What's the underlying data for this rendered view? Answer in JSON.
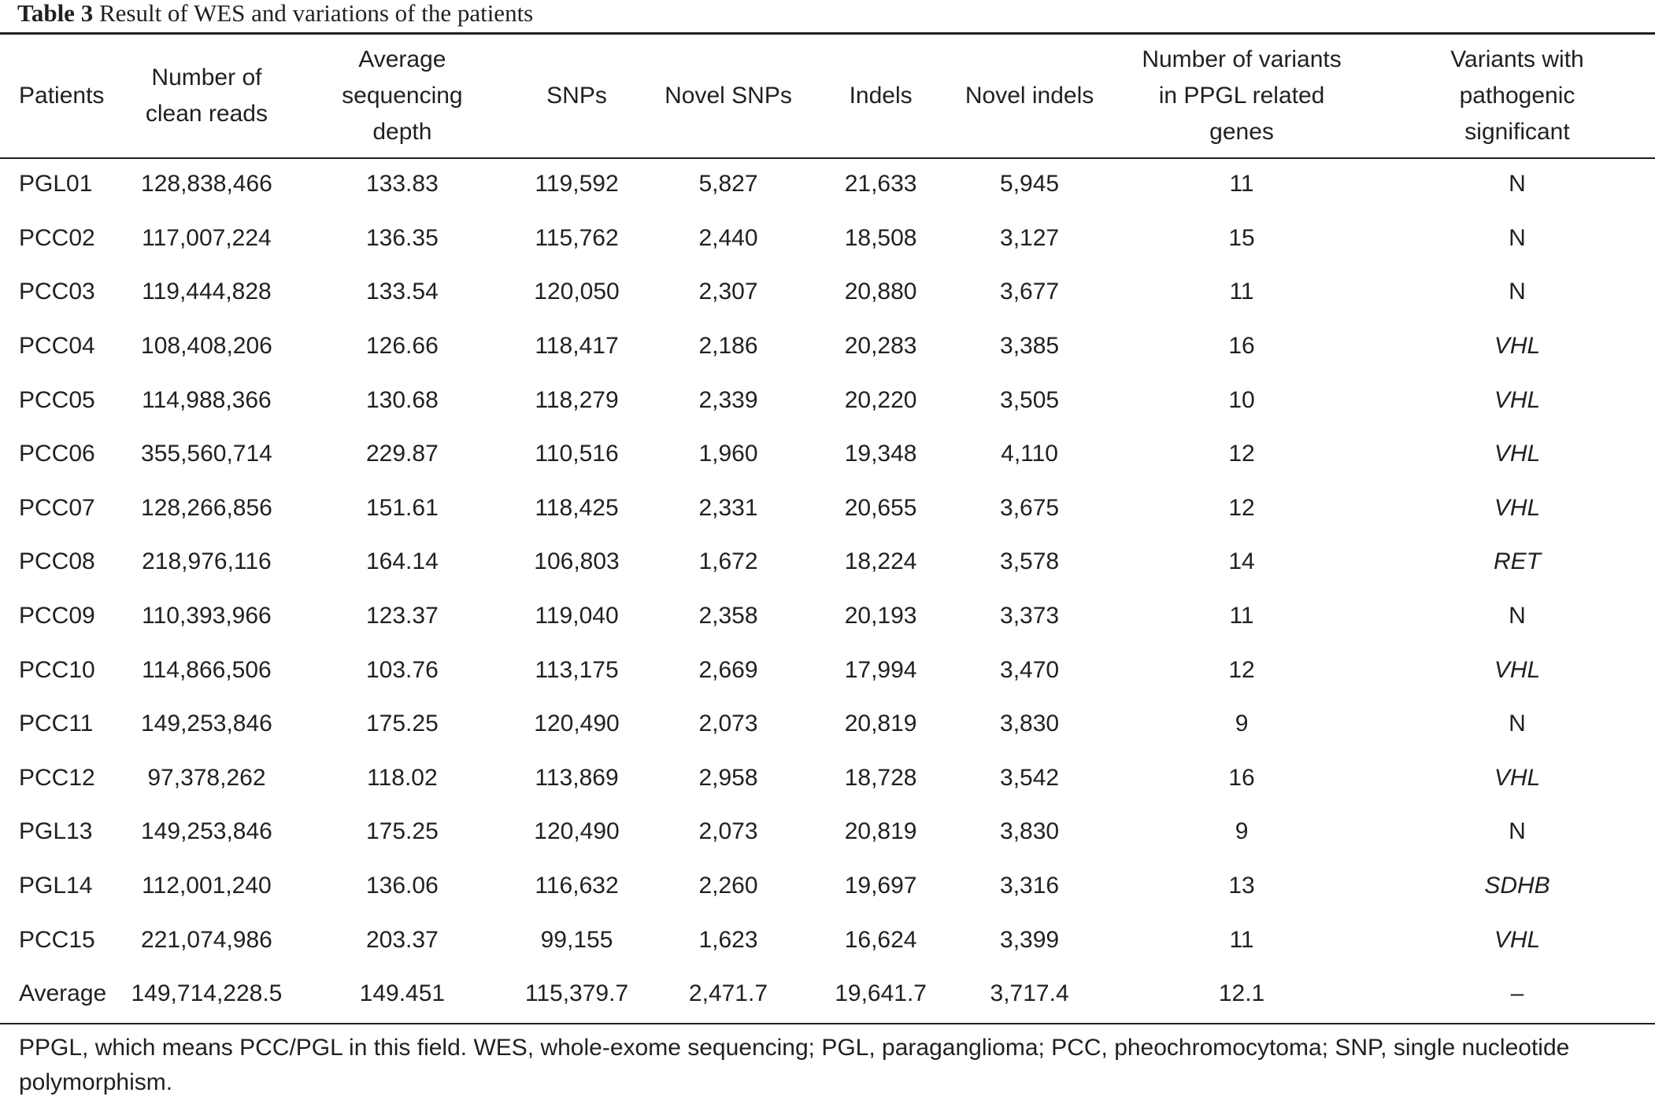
{
  "caption": {
    "label": "Table 3",
    "title": "Result of WES and variations of the patients"
  },
  "table": {
    "headers": [
      "Patients",
      "Number of\nclean reads",
      "Average\nsequencing\ndepth",
      "SNPs",
      "Novel SNPs",
      "Indels",
      "Novel indels",
      "Number of variants\nin PPGL related\ngenes",
      "Variants with\npathogenic\nsignificant"
    ],
    "rows": [
      [
        "PGL01",
        "128,838,466",
        "133.83",
        "119,592",
        "5,827",
        "21,633",
        "5,945",
        "11",
        "N"
      ],
      [
        "PCC02",
        "117,007,224",
        "136.35",
        "115,762",
        "2,440",
        "18,508",
        "3,127",
        "15",
        "N"
      ],
      [
        "PCC03",
        "119,444,828",
        "133.54",
        "120,050",
        "2,307",
        "20,880",
        "3,677",
        "11",
        "N"
      ],
      [
        "PCC04",
        "108,408,206",
        "126.66",
        "118,417",
        "2,186",
        "20,283",
        "3,385",
        "16",
        "VHL"
      ],
      [
        "PCC05",
        "114,988,366",
        "130.68",
        "118,279",
        "2,339",
        "20,220",
        "3,505",
        "10",
        "VHL"
      ],
      [
        "PCC06",
        "355,560,714",
        "229.87",
        "110,516",
        "1,960",
        "19,348",
        "4,110",
        "12",
        "VHL"
      ],
      [
        "PCC07",
        "128,266,856",
        "151.61",
        "118,425",
        "2,331",
        "20,655",
        "3,675",
        "12",
        "VHL"
      ],
      [
        "PCC08",
        "218,976,116",
        "164.14",
        "106,803",
        "1,672",
        "18,224",
        "3,578",
        "14",
        "RET"
      ],
      [
        "PCC09",
        "110,393,966",
        "123.37",
        "119,040",
        "2,358",
        "20,193",
        "3,373",
        "11",
        "N"
      ],
      [
        "PCC10",
        "114,866,506",
        "103.76",
        "113,175",
        "2,669",
        "17,994",
        "3,470",
        "12",
        "VHL"
      ],
      [
        "PCC11",
        "149,253,846",
        "175.25",
        "120,490",
        "2,073",
        "20,819",
        "3,830",
        "9",
        "N"
      ],
      [
        "PCC12",
        "97,378,262",
        "118.02",
        "113,869",
        "2,958",
        "18,728",
        "3,542",
        "16",
        "VHL"
      ],
      [
        "PGL13",
        "149,253,846",
        "175.25",
        "120,490",
        "2,073",
        "20,819",
        "3,830",
        "9",
        "N"
      ],
      [
        "PGL14",
        "112,001,240",
        "136.06",
        "116,632",
        "2,260",
        "19,697",
        "3,316",
        "13",
        "SDHB"
      ],
      [
        "PCC15",
        "221,074,986",
        "203.37",
        "99,155",
        "1,623",
        "16,624",
        "3,399",
        "11",
        "VHL"
      ],
      [
        "Average",
        "149,714,228.5",
        "149.451",
        "115,379.7",
        "2,471.7",
        "19,641.7",
        "3,717.4",
        "12.1",
        "–"
      ]
    ]
  },
  "footnote": "PPGL, which means PCC/PGL in this field. WES, whole-exome sequencing; PGL, paraganglioma; PCC, pheochromocytoma; SNP, single nucleotide polymorphism."
}
